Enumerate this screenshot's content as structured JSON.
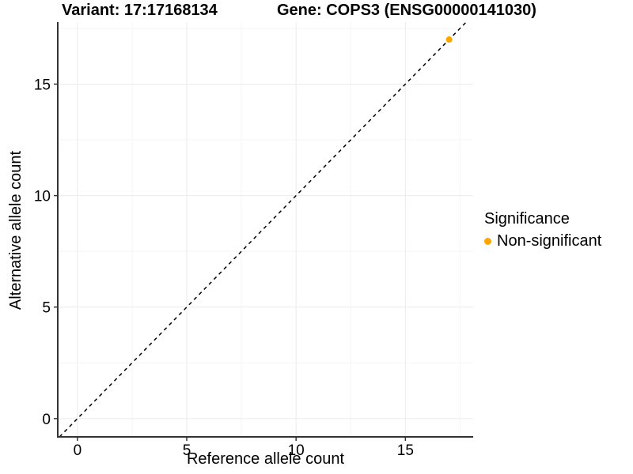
{
  "titles": {
    "variant": "Variant: 17:17168134",
    "gene": "Gene: COPS3 (ENSG00000141030)"
  },
  "axes": {
    "x_label": "Reference allele count",
    "y_label": "Alternative allele count"
  },
  "legend": {
    "title": "Significance",
    "item_label": "Non-significant"
  },
  "colors": {
    "point": "#FFA500",
    "legend_dot": "#FFA500",
    "axis_line": "#333333",
    "grid_major": "#ebebeb",
    "grid_minor": "#f5f5f5",
    "tick_text": "#000000",
    "reference_line": "#000000"
  },
  "chart_data": {
    "type": "scatter",
    "title": "Variant: 17:17168134 | Gene: COPS3 (ENSG00000141030)",
    "xlabel": "Reference allele count",
    "ylabel": "Alternative allele count",
    "xlim": [
      -0.9,
      18.1
    ],
    "ylim": [
      -0.82,
      17.78
    ],
    "x_ticks": [
      0,
      5,
      10,
      15
    ],
    "y_ticks": [
      0,
      5,
      10,
      15
    ],
    "x_minor_ticks": [
      2.5,
      7.5,
      12.5,
      17.5
    ],
    "y_minor_ticks": [
      2.5,
      7.5,
      12.5,
      17.5
    ],
    "grid": "major+minor",
    "legend_position": "right",
    "reference_line": {
      "type": "identity",
      "slope": 1,
      "intercept": 0,
      "style": "dashed"
    },
    "series": [
      {
        "name": "Non-significant",
        "color": "#FFA500",
        "points": [
          {
            "x": 17,
            "y": 17
          }
        ]
      }
    ]
  }
}
